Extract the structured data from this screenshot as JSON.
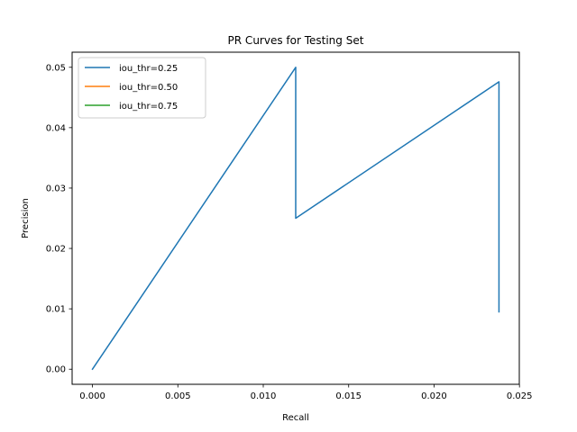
{
  "chart_data": {
    "type": "line",
    "title": "PR Curves for Testing Set",
    "xlabel": "Recall",
    "ylabel": "Precision",
    "xlim": [
      -0.00119,
      0.02499
    ],
    "ylim": [
      -0.0025,
      0.0525
    ],
    "xticks": [
      0.0,
      0.005,
      0.01,
      0.015,
      0.02,
      0.025
    ],
    "xtick_labels": [
      "0.000",
      "0.005",
      "0.010",
      "0.015",
      "0.020",
      "0.025"
    ],
    "yticks": [
      0.0,
      0.01,
      0.02,
      0.03,
      0.04,
      0.05
    ],
    "ytick_labels": [
      "0.00",
      "0.01",
      "0.02",
      "0.03",
      "0.04",
      "0.05"
    ],
    "grid": false,
    "legend_position": "top-left",
    "series": [
      {
        "name": "iou_thr=0.25",
        "color": "#1f77b4",
        "x": [
          0.0,
          0.0119,
          0.0119,
          0.0238,
          0.0238
        ],
        "y": [
          0.0,
          0.05,
          0.025,
          0.0476,
          0.0095
        ]
      },
      {
        "name": "iou_thr=0.50",
        "color": "#ff7f0e",
        "x": [],
        "y": []
      },
      {
        "name": "iou_thr=0.75",
        "color": "#2ca02c",
        "x": [],
        "y": []
      }
    ]
  }
}
